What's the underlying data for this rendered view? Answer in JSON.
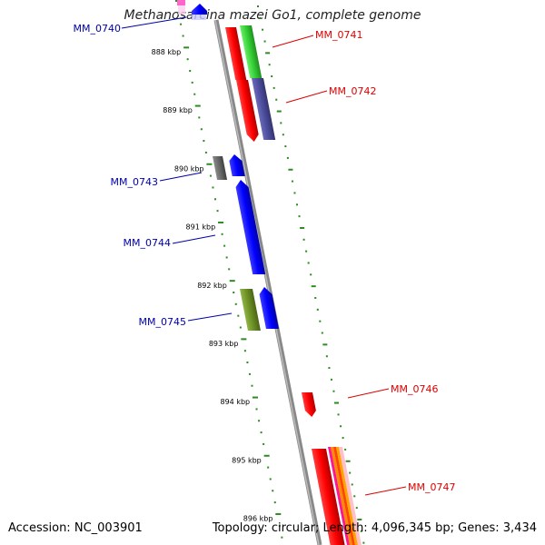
{
  "title": "Methanosarcina mazei Go1, complete genome",
  "footer": {
    "accession_label": "Accession:",
    "accession": "NC_003901",
    "topology_label": "Topology:",
    "topology": "circular",
    "length_label": "Length:",
    "length": "4,096,345 bp",
    "genes_label": "Genes:",
    "genes": "3,434"
  },
  "ticks": [
    {
      "label": "888 kbp"
    },
    {
      "label": "889 kbp"
    },
    {
      "label": "890 kbp"
    },
    {
      "label": "891 kbp"
    },
    {
      "label": "892 kbp"
    },
    {
      "label": "893 kbp"
    },
    {
      "label": "894 kbp"
    },
    {
      "label": "895 kbp"
    },
    {
      "label": "896 kbp"
    }
  ],
  "genes": [
    {
      "name": "MM_0740",
      "color": "#0000aa"
    },
    {
      "name": "MM_0741",
      "color": "#dd0000"
    },
    {
      "name": "MM_0742",
      "color": "#dd0000"
    },
    {
      "name": "MM_0743",
      "color": "#0000aa"
    },
    {
      "name": "MM_0744",
      "color": "#0000aa"
    },
    {
      "name": "MM_0745",
      "color": "#0000aa"
    },
    {
      "name": "MM_0746",
      "color": "#dd0000"
    },
    {
      "name": "MM_0747",
      "color": "#dd0000"
    }
  ],
  "colors": {
    "backbone": "#888888",
    "tick_dots": "#2e8b22",
    "forward_feature": "#ff0000",
    "reverse_feature": "#0000ff",
    "green_feature": "#33cc33",
    "purple_feature": "#4b4b9c",
    "olive_feature": "#6b8e23",
    "grey_feature": "#666666"
  }
}
